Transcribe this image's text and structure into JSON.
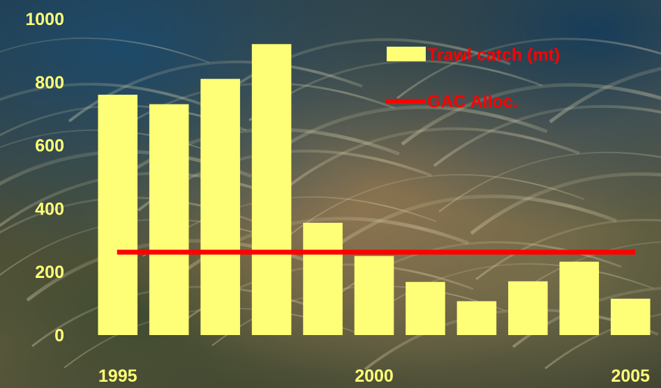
{
  "chart_data": {
    "type": "bar",
    "title": "",
    "xlabel": "",
    "ylabel": "",
    "ylim": [
      0,
      1000
    ],
    "yticks": [
      "0",
      "200",
      "400",
      "600",
      "800",
      "1000"
    ],
    "xtick_labels": [
      {
        "label": "1995",
        "year": 1995
      },
      {
        "label": "2000",
        "year": 2000
      },
      {
        "label": "2005",
        "year": 2005
      }
    ],
    "categories": [
      "1995",
      "1996",
      "1997",
      "1998",
      "1999",
      "2000",
      "2001",
      "2002",
      "2003",
      "2004",
      "2005"
    ],
    "series": [
      {
        "name": "Trawl catch (mt)",
        "type": "bar",
        "color": "#ffff77",
        "values": [
          760,
          730,
          810,
          920,
          355,
          250,
          168,
          107,
          170,
          232,
          115
        ]
      },
      {
        "name": "GAC Alloc.",
        "type": "line",
        "color": "#ff0000",
        "values": [
          262,
          262,
          262,
          262,
          262,
          262,
          262,
          262,
          262,
          262,
          262
        ]
      }
    ],
    "grid": false,
    "legend": "top-right"
  }
}
